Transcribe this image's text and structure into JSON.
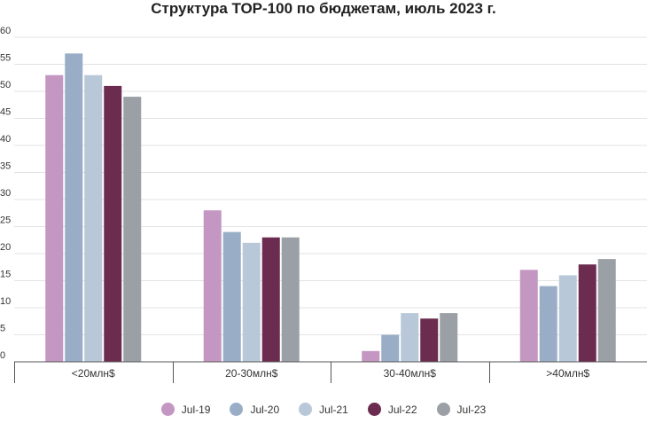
{
  "chart_data": {
    "type": "bar",
    "title": "Структура ТОР-100 по бюджетам, июль 2023 г.",
    "xlabel": "",
    "ylabel": "",
    "ylim": [
      0,
      60
    ],
    "yticks": [
      0,
      5,
      10,
      15,
      20,
      25,
      30,
      35,
      40,
      45,
      50,
      55,
      60
    ],
    "grid": true,
    "legend_position": "bottom",
    "categories": [
      "<20млн$",
      "20-30млн$",
      "30-40млн$",
      ">40млн$"
    ],
    "series": [
      {
        "name": "Jul-19",
        "color": "#c496c2",
        "values": [
          53,
          28,
          2,
          17
        ]
      },
      {
        "name": "Jul-20",
        "color": "#99aec6",
        "values": [
          57,
          24,
          5,
          14
        ]
      },
      {
        "name": "Jul-21",
        "color": "#b9c8d8",
        "values": [
          53,
          22,
          9,
          16
        ]
      },
      {
        "name": "Jul-22",
        "color": "#6b2c50",
        "values": [
          51,
          23,
          8,
          18
        ]
      },
      {
        "name": "Jul-23",
        "color": "#9aa0a6",
        "values": [
          49,
          23,
          9,
          19
        ]
      }
    ]
  }
}
